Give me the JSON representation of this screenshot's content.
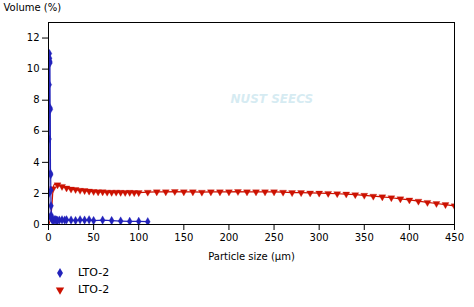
{
  "chart_data": {
    "type": "line",
    "xlabel": "Particle size (μm)",
    "ylabel": "Volume (%)",
    "xlim": [
      0,
      450
    ],
    "ylim": [
      0,
      13
    ],
    "xticks": [
      0,
      50,
      100,
      150,
      200,
      250,
      300,
      350,
      400,
      450
    ],
    "yticks": [
      0,
      2,
      4,
      6,
      8,
      10,
      12
    ],
    "grid": false,
    "annotations": [
      {
        "text": "NUST SEECS",
        "color": "#add8e6"
      }
    ],
    "series": [
      {
        "name": "LTO-2",
        "color": "#2222bb",
        "type": "line",
        "marker": "diamond",
        "x": [
          0.2,
          0.4,
          0.6,
          0.8,
          1.0,
          1.2,
          1.4,
          1.6,
          1.8,
          2.0,
          2.2,
          2.4,
          2.6,
          2.8,
          3.0,
          3.5,
          4.0,
          5.0,
          6.0,
          7.0,
          8.0,
          9.0,
          10.0,
          12.0,
          15.0,
          18.0,
          20.0,
          25.0,
          30.0,
          35.0,
          40.0,
          45.0,
          50.0,
          60.0,
          70.0,
          80.0,
          90.0,
          100.0,
          110.0
        ],
        "values": [
          0.5,
          2.0,
          5.5,
          9.0,
          11.0,
          10.7,
          10.5,
          10.4,
          7.5,
          7.4,
          3.3,
          3.2,
          2.2,
          1.2,
          0.6,
          0.4,
          0.3,
          0.25,
          0.3,
          0.3,
          0.3,
          0.28,
          0.25,
          0.28,
          0.3,
          0.28,
          0.3,
          0.28,
          0.25,
          0.3,
          0.28,
          0.3,
          0.25,
          0.28,
          0.25,
          0.22,
          0.2,
          0.2,
          0.18
        ]
      },
      {
        "name": "LTO-2",
        "color": "#cc1100",
        "type": "scatter",
        "marker": "triangle_down",
        "x": [
          5.0,
          10.0,
          15.0,
          20.0,
          25.0,
          30.0,
          35.0,
          40.0,
          45.0,
          50.0,
          55.0,
          60.0,
          65.0,
          70.0,
          75.0,
          80.0,
          85.0,
          90.0,
          95.0,
          100.0,
          110.0,
          120.0,
          130.0,
          140.0,
          150.0,
          160.0,
          170.0,
          180.0,
          190.0,
          200.0,
          210.0,
          220.0,
          230.0,
          240.0,
          250.0,
          260.0,
          270.0,
          280.0,
          290.0,
          300.0,
          310.0,
          320.0,
          330.0,
          340.0,
          350.0,
          360.0,
          370.0,
          380.0,
          390.0,
          400.0,
          410.0,
          420.0,
          430.0,
          440.0,
          450.0
        ],
        "values": [
          2.3,
          2.55,
          2.45,
          2.35,
          2.28,
          2.25,
          2.2,
          2.18,
          2.15,
          2.12,
          2.1,
          2.1,
          2.08,
          2.07,
          2.08,
          2.07,
          2.06,
          2.07,
          2.05,
          2.05,
          2.08,
          2.1,
          2.1,
          2.12,
          2.1,
          2.1,
          2.08,
          2.1,
          2.1,
          2.1,
          2.12,
          2.1,
          2.1,
          2.1,
          2.1,
          2.08,
          2.05,
          2.05,
          2.03,
          2.02,
          2.0,
          1.98,
          1.96,
          1.92,
          1.88,
          1.82,
          1.78,
          1.72,
          1.65,
          1.58,
          1.5,
          1.42,
          1.35,
          1.28,
          1.2
        ]
      },
      {
        "color": "#cc1100",
        "type": "line",
        "x": [
          0.5,
          1.0,
          2.0,
          3.0,
          4.0,
          5.0,
          6.0,
          7.0,
          8.0,
          10.0,
          12.0,
          15.0,
          18.0,
          20.0,
          25.0,
          30.0,
          35.0,
          40.0,
          45.0,
          50.0,
          55.0,
          60.0,
          65.0,
          70.0,
          75.0,
          80.0,
          85.0,
          90.0,
          95.0,
          100.0,
          110.0,
          120.0,
          130.0,
          140.0,
          150.0,
          160.0,
          170.0,
          180.0,
          190.0,
          200.0,
          210.0,
          220.0,
          230.0,
          240.0,
          250.0,
          260.0,
          270.0,
          280.0,
          290.0,
          300.0,
          310.0,
          320.0,
          330.0,
          340.0,
          350.0,
          360.0,
          370.0,
          380.0,
          390.0,
          400.0,
          410.0,
          420.0,
          430.0,
          440.0,
          450.0
        ],
        "values": [
          0.05,
          0.1,
          0.3,
          0.7,
          1.4,
          2.3,
          2.55,
          2.6,
          2.58,
          2.55,
          2.5,
          2.45,
          2.38,
          2.35,
          2.28,
          2.25,
          2.2,
          2.18,
          2.15,
          2.12,
          2.1,
          2.1,
          2.08,
          2.07,
          2.08,
          2.07,
          2.06,
          2.07,
          2.05,
          2.05,
          2.08,
          2.1,
          2.1,
          2.12,
          2.1,
          2.1,
          2.08,
          2.1,
          2.1,
          2.1,
          2.12,
          2.1,
          2.1,
          2.1,
          2.1,
          2.08,
          2.05,
          2.05,
          2.03,
          2.02,
          2.0,
          1.98,
          1.96,
          1.92,
          1.88,
          1.82,
          1.78,
          1.72,
          1.65,
          1.58,
          1.5,
          1.42,
          1.35,
          1.28,
          1.2
        ]
      }
    ]
  }
}
